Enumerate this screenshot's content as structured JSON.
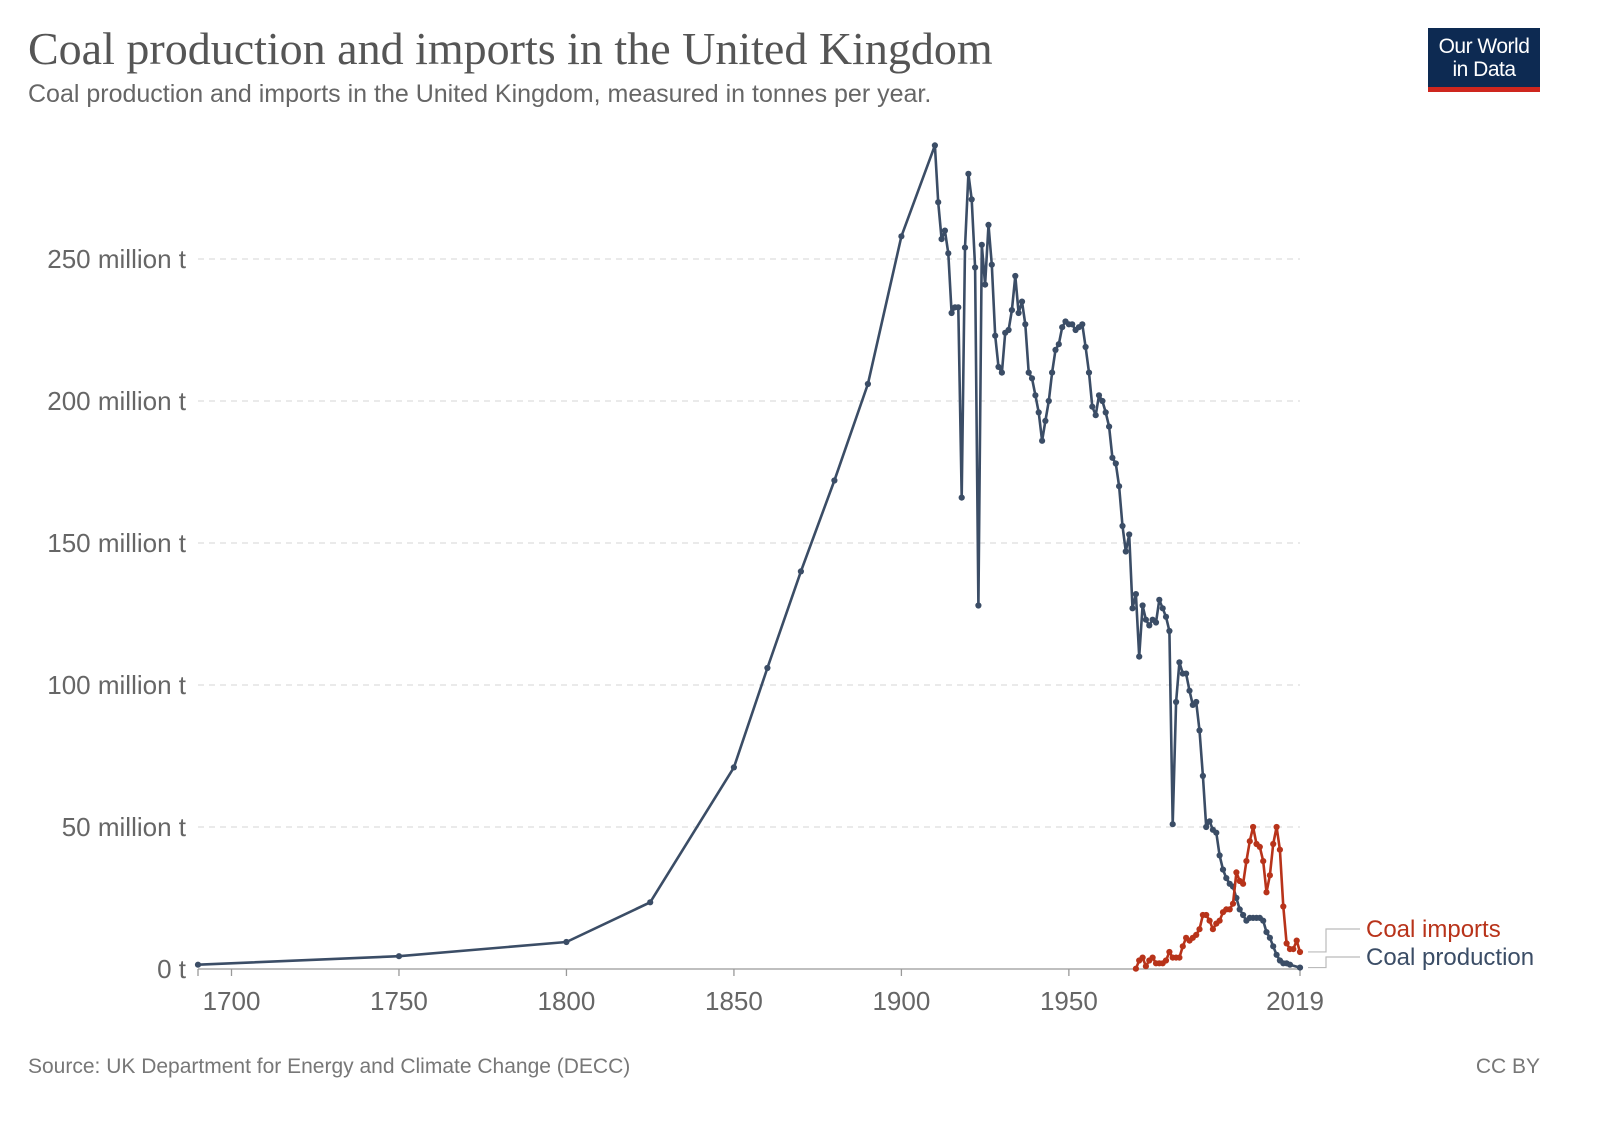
{
  "header": {
    "title": "Coal production and imports in the United Kingdom",
    "subtitle": "Coal production and imports in the United Kingdom, measured in tonnes per year."
  },
  "logo": {
    "line1": "Our World",
    "line2": "in Data"
  },
  "footer": {
    "source": "Source: UK Department for Energy and Climate Change (DECC)",
    "license": "CC BY"
  },
  "colors": {
    "production": "#3b4d66",
    "imports": "#b8331a",
    "grid": "#dddddd",
    "axis_text": "#666666",
    "logo_bg": "#0d2a52",
    "logo_bar": "#ce261e"
  },
  "chart_data": {
    "type": "line",
    "title": "Coal production and imports in the United Kingdom",
    "subtitle": "Coal production and imports in the United Kingdom, measured in tonnes per year.",
    "xlabel": "",
    "ylabel": "",
    "units": "million tonnes",
    "xlim": [
      1690,
      2019
    ],
    "ylim": [
      0,
      290
    ],
    "x_ticks": [
      1700,
      1750,
      1800,
      1850,
      1900,
      1950,
      2019
    ],
    "x_tick_labels": [
      "1700",
      "1750",
      "1800",
      "1850",
      "1900",
      "1950",
      "2019"
    ],
    "y_ticks": [
      0,
      50,
      100,
      150,
      200,
      250
    ],
    "y_tick_labels": [
      "0 t",
      "50 million t",
      "100 million t",
      "150 million t",
      "200 million t",
      "250 million t"
    ],
    "grid": "horizontal dashed",
    "legend": "right, labels at line ends",
    "series": [
      {
        "name": "Coal production",
        "color": "#3b4d66",
        "points": [
          [
            1690,
            1.5
          ],
          [
            1750,
            4.5
          ],
          [
            1800,
            9.5
          ],
          [
            1825,
            23.5
          ],
          [
            1850,
            71
          ],
          [
            1860,
            106
          ],
          [
            1870,
            140
          ],
          [
            1880,
            172
          ],
          [
            1890,
            206
          ],
          [
            1900,
            258
          ],
          [
            1910,
            290
          ],
          [
            1911,
            270
          ],
          [
            1912,
            257
          ],
          [
            1913,
            260
          ],
          [
            1914,
            252
          ],
          [
            1915,
            231
          ],
          [
            1916,
            233
          ],
          [
            1917,
            233
          ],
          [
            1918,
            166
          ],
          [
            1919,
            254
          ],
          [
            1920,
            280
          ],
          [
            1921,
            271
          ],
          [
            1922,
            247
          ],
          [
            1923,
            128
          ],
          [
            1924,
            255
          ],
          [
            1925,
            241
          ],
          [
            1926,
            262
          ],
          [
            1927,
            248
          ],
          [
            1928,
            223
          ],
          [
            1929,
            212
          ],
          [
            1930,
            210
          ],
          [
            1931,
            224
          ],
          [
            1932,
            225
          ],
          [
            1933,
            232
          ],
          [
            1934,
            244
          ],
          [
            1935,
            231
          ],
          [
            1936,
            235
          ],
          [
            1937,
            227
          ],
          [
            1938,
            210
          ],
          [
            1939,
            208
          ],
          [
            1940,
            202
          ],
          [
            1941,
            196
          ],
          [
            1942,
            186
          ],
          [
            1943,
            193
          ],
          [
            1944,
            200
          ],
          [
            1945,
            210
          ],
          [
            1946,
            218
          ],
          [
            1947,
            220
          ],
          [
            1948,
            226
          ],
          [
            1949,
            228
          ],
          [
            1950,
            227
          ],
          [
            1951,
            227
          ],
          [
            1952,
            225
          ],
          [
            1953,
            226
          ],
          [
            1954,
            227
          ],
          [
            1955,
            219
          ],
          [
            1956,
            210
          ],
          [
            1957,
            198
          ],
          [
            1958,
            195
          ],
          [
            1959,
            202
          ],
          [
            1960,
            200
          ],
          [
            1961,
            196
          ],
          [
            1962,
            191
          ],
          [
            1963,
            180
          ],
          [
            1964,
            178
          ],
          [
            1965,
            170
          ],
          [
            1966,
            156
          ],
          [
            1967,
            147
          ],
          [
            1968,
            153
          ],
          [
            1969,
            127
          ],
          [
            1970,
            132
          ],
          [
            1971,
            110
          ],
          [
            1972,
            128
          ],
          [
            1973,
            123
          ],
          [
            1974,
            121
          ],
          [
            1975,
            123
          ],
          [
            1976,
            122
          ],
          [
            1977,
            130
          ],
          [
            1978,
            127
          ],
          [
            1979,
            124
          ],
          [
            1980,
            119
          ],
          [
            1981,
            51
          ],
          [
            1982,
            94
          ],
          [
            1983,
            108
          ],
          [
            1984,
            104
          ],
          [
            1985,
            104
          ],
          [
            1986,
            98
          ],
          [
            1987,
            93
          ],
          [
            1988,
            94
          ],
          [
            1989,
            84
          ],
          [
            1990,
            68
          ],
          [
            1991,
            50
          ],
          [
            1992,
            52
          ],
          [
            1993,
            49
          ],
          [
            1994,
            48
          ],
          [
            1995,
            40
          ],
          [
            1996,
            35
          ],
          [
            1997,
            32
          ],
          [
            1998,
            30
          ],
          [
            1999,
            29
          ],
          [
            2000,
            25
          ],
          [
            2001,
            21
          ],
          [
            2002,
            19
          ],
          [
            2003,
            17
          ],
          [
            2004,
            18
          ],
          [
            2005,
            18
          ],
          [
            2006,
            18
          ],
          [
            2007,
            18
          ],
          [
            2008,
            17
          ],
          [
            2009,
            13
          ],
          [
            2010,
            11
          ],
          [
            2011,
            8
          ],
          [
            2012,
            5
          ],
          [
            2013,
            3
          ],
          [
            2014,
            2
          ],
          [
            2015,
            2
          ],
          [
            2016,
            1.5
          ],
          [
            2019,
            0.5
          ]
        ]
      },
      {
        "name": "Coal imports",
        "color": "#b8331a",
        "points": [
          [
            1970,
            0.1
          ],
          [
            1971,
            3
          ],
          [
            1972,
            4
          ],
          [
            1973,
            1
          ],
          [
            1974,
            3
          ],
          [
            1975,
            4
          ],
          [
            1976,
            2
          ],
          [
            1977,
            2
          ],
          [
            1978,
            2
          ],
          [
            1979,
            3
          ],
          [
            1980,
            6
          ],
          [
            1981,
            4
          ],
          [
            1982,
            4
          ],
          [
            1983,
            4
          ],
          [
            1984,
            8
          ],
          [
            1985,
            11
          ],
          [
            1986,
            10
          ],
          [
            1987,
            11
          ],
          [
            1988,
            12
          ],
          [
            1989,
            14
          ],
          [
            1990,
            19
          ],
          [
            1991,
            19
          ],
          [
            1992,
            17
          ],
          [
            1993,
            14
          ],
          [
            1994,
            16
          ],
          [
            1995,
            17
          ],
          [
            1996,
            20
          ],
          [
            1997,
            21
          ],
          [
            1998,
            21
          ],
          [
            1999,
            23
          ],
          [
            2000,
            34
          ],
          [
            2001,
            31
          ],
          [
            2002,
            30
          ],
          [
            2003,
            38
          ],
          [
            2004,
            45
          ],
          [
            2005,
            50
          ],
          [
            2006,
            44
          ],
          [
            2007,
            43
          ],
          [
            2008,
            38
          ],
          [
            2009,
            27
          ],
          [
            2010,
            33
          ],
          [
            2011,
            44
          ],
          [
            2012,
            50
          ],
          [
            2013,
            42
          ],
          [
            2014,
            22
          ],
          [
            2015,
            9
          ],
          [
            2016,
            7
          ],
          [
            2017,
            7
          ],
          [
            2018,
            10
          ],
          [
            2019,
            6
          ]
        ]
      }
    ]
  }
}
